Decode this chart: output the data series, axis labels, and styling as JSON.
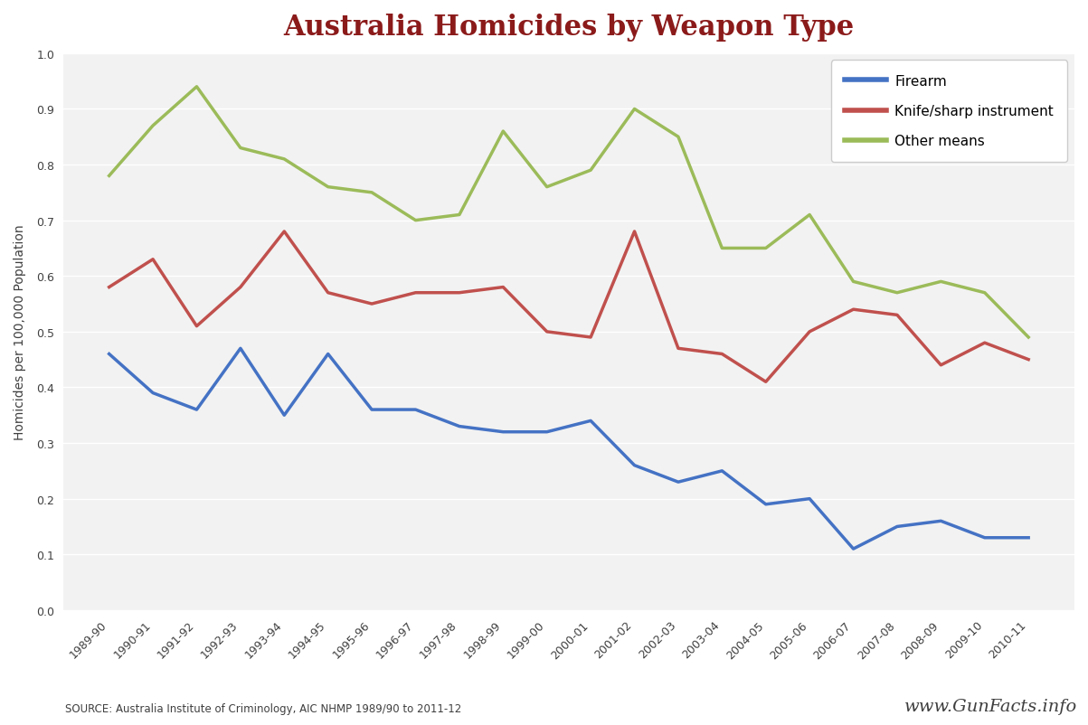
{
  "title": "Australia Homicides by Weapon Type",
  "ylabel": "Homicides per 100,000 Population",
  "source_text": "SOURCE: Australia Institute of Criminology, AIC NHMP 1989/90 to 2011-12",
  "watermark": "www.GunFacts.info",
  "ylim": [
    0.0,
    1.0
  ],
  "yticks": [
    0.0,
    0.1,
    0.2,
    0.3,
    0.4,
    0.5,
    0.6,
    0.7,
    0.8,
    0.9,
    1.0
  ],
  "categories": [
    "1989-90",
    "1990-91",
    "1991-92",
    "1992-93",
    "1993-94",
    "1994-95",
    "1995-96",
    "1996-97",
    "1997-98",
    "1998-99",
    "1999-00",
    "2000-01",
    "2001-02",
    "2002-03",
    "2003-04",
    "2004-05",
    "2005-06",
    "2006-07",
    "2007-08",
    "2008-09",
    "2009-10",
    "2010-11"
  ],
  "firearm": [
    0.46,
    0.39,
    0.36,
    0.47,
    0.35,
    0.46,
    0.36,
    0.36,
    0.33,
    0.32,
    0.32,
    0.34,
    0.26,
    0.23,
    0.25,
    0.19,
    0.2,
    0.11,
    0.15,
    0.16,
    0.13,
    0.13
  ],
  "knife": [
    0.58,
    0.63,
    0.51,
    0.58,
    0.68,
    0.57,
    0.55,
    0.57,
    0.57,
    0.58,
    0.5,
    0.49,
    0.68,
    0.47,
    0.46,
    0.41,
    0.5,
    0.54,
    0.53,
    0.44,
    0.48,
    0.45
  ],
  "other": [
    0.78,
    0.87,
    0.94,
    0.83,
    0.81,
    0.76,
    0.75,
    0.7,
    0.71,
    0.86,
    0.76,
    0.79,
    0.9,
    0.85,
    0.65,
    0.65,
    0.71,
    0.59,
    0.57,
    0.59,
    0.57,
    0.49
  ],
  "firearm_color": "#4472C4",
  "knife_color": "#C0504D",
  "other_color": "#9BBB59",
  "title_color": "#8B1A1A",
  "background_color": "#FFFFFF",
  "plot_bg_color": "#F2F2F2",
  "grid_color": "#FFFFFF",
  "legend_labels": [
    "Firearm",
    "Knife/sharp instrument",
    "Other means"
  ],
  "line_width": 2.5
}
